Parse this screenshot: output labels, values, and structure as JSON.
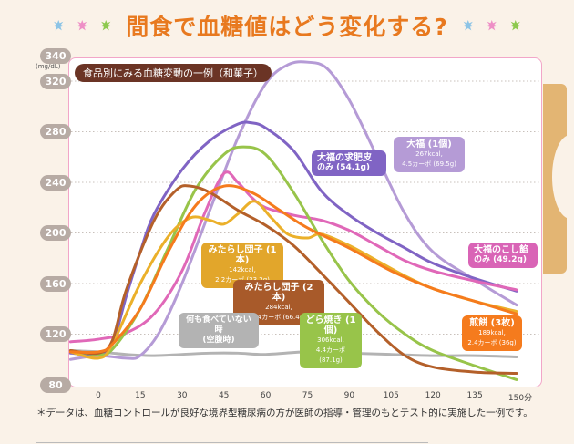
{
  "header": {
    "title": "間食で血糖値はどう変化する?",
    "stars_left": [
      "#8cc4e6",
      "#ee8fc6",
      "#8dc94e"
    ],
    "stars_right": [
      "#8cc4e6",
      "#ee8fc6",
      "#8dc94e"
    ]
  },
  "chart_data": {
    "type": "line",
    "title": "食品別にみる血糖変動の一例（和菓子）",
    "xlabel": "",
    "ylabel": "(mg/dL)",
    "x_unit_label": "分",
    "xlim": [
      -10,
      155
    ],
    "ylim": [
      80,
      340
    ],
    "xticks": [
      0,
      15,
      30,
      45,
      60,
      75,
      90,
      105,
      120,
      135,
      150
    ],
    "xtick_labels": [
      "0",
      "15",
      "30",
      "45",
      "60",
      "75",
      "90",
      "105",
      "120",
      "135",
      "150分"
    ],
    "yticks": [
      80,
      120,
      160,
      200,
      240,
      280,
      320,
      340
    ],
    "grid": true,
    "series": [
      {
        "name": "何も食べていない時 (空腹時)",
        "color": "#b3b3b3",
        "x": [
          -10,
          0,
          10,
          20,
          30,
          40,
          50,
          60,
          75,
          90,
          105,
          120,
          135,
          150
        ],
        "y": [
          107,
          106,
          104,
          103,
          104,
          105,
          105,
          104,
          106,
          105,
          104,
          103,
          103,
          102
        ],
        "callout": {
          "line1": "何も食べていない時",
          "line2": "(空腹時)"
        }
      },
      {
        "name": "大福 (1個)",
        "color": "#b59bd6",
        "x": [
          -10,
          0,
          10,
          15,
          22,
          30,
          40,
          50,
          60,
          68,
          75,
          82,
          90,
          100,
          110,
          120,
          135,
          150
        ],
        "y": [
          100,
          103,
          101,
          103,
          122,
          160,
          218,
          275,
          318,
          333,
          335,
          330,
          305,
          260,
          215,
          185,
          163,
          143
        ],
        "callout": {
          "line1": "大福 (1個)",
          "line2": "267kcal,",
          "line3": "4.5カーボ (69.5g)"
        }
      },
      {
        "name": "大福の求肥皮のみ",
        "color": "#8064c4",
        "x": [
          -10,
          0,
          5,
          10,
          15,
          20,
          30,
          40,
          50,
          55,
          60,
          70,
          80,
          90,
          100,
          110,
          120,
          135,
          150
        ],
        "y": [
          105,
          104,
          112,
          150,
          185,
          215,
          250,
          273,
          286,
          287,
          283,
          265,
          233,
          214,
          200,
          188,
          176,
          164,
          154
        ],
        "callout": {
          "line1": "大福の求肥皮",
          "line2": "のみ (54.1g)"
        }
      },
      {
        "name": "大福のこし餡のみ",
        "color": "#e068b8",
        "x": [
          -10,
          0,
          10,
          20,
          30,
          38,
          45,
          50,
          55,
          60,
          70,
          80,
          90,
          100,
          110,
          120,
          135,
          150
        ],
        "y": [
          114,
          116,
          121,
          136,
          170,
          215,
          247,
          240,
          228,
          220,
          214,
          210,
          202,
          190,
          178,
          170,
          162,
          155
        ],
        "callout": {
          "line1": "大福のこし餡",
          "line2": "のみ (49.2g)"
        }
      },
      {
        "name": "どら焼き (1個)",
        "color": "#98c44a",
        "x": [
          -10,
          0,
          5,
          15,
          25,
          35,
          45,
          52,
          60,
          70,
          80,
          90,
          100,
          110,
          120,
          135,
          150
        ],
        "y": [
          107,
          104,
          108,
          140,
          188,
          235,
          262,
          268,
          262,
          232,
          195,
          162,
          138,
          120,
          107,
          95,
          84
        ],
        "callout": {
          "line1": "どら焼き (1個)",
          "line2": "306kcal,",
          "line3": "4.4カーボ (87.1g)"
        }
      },
      {
        "name": "みたらし団子 (1本)",
        "color": "#ebb02a",
        "x": [
          -10,
          0,
          5,
          15,
          25,
          33,
          40,
          45,
          50,
          56,
          62,
          68,
          75,
          80,
          90,
          100,
          110,
          120,
          135,
          150
        ],
        "y": [
          106,
          101,
          112,
          160,
          197,
          212,
          210,
          207,
          215,
          225,
          212,
          199,
          196,
          199,
          190,
          178,
          166,
          156,
          146,
          138
        ],
        "callout": {
          "line1": "みたらし団子 (1本)",
          "line2": "142kcal,",
          "line3": "2.2カーボ (33.2g)"
        }
      },
      {
        "name": "みたらし団子 (2本)",
        "color": "#b4602a",
        "x": [
          -10,
          0,
          5,
          10,
          20,
          28,
          33,
          40,
          50,
          60,
          70,
          80,
          90,
          100,
          110,
          120,
          135,
          150
        ],
        "y": [
          107,
          105,
          115,
          155,
          210,
          234,
          237,
          232,
          218,
          206,
          190,
          168,
          145,
          122,
          103,
          94,
          90,
          89
        ],
        "callout": {
          "line1": "みたらし団子 (2本)",
          "line2": "284kcal,",
          "line3": "4.4カーボ (66.4g)"
        }
      },
      {
        "name": "煎餅 (3枚)",
        "color": "#f57b1d",
        "x": [
          -10,
          0,
          5,
          15,
          25,
          35,
          45,
          55,
          65,
          75,
          90,
          105,
          120,
          135,
          150
        ],
        "y": [
          106,
          106,
          112,
          140,
          185,
          222,
          237,
          232,
          218,
          204,
          188,
          170,
          156,
          146,
          136
        ],
        "callout": {
          "line1": "煎餅 (3枚)",
          "line2": "189kcal,",
          "line3": "2.4カーボ (36g)"
        }
      }
    ]
  },
  "footnote": "＊データは、血糖コントロールが良好な境界型糖尿病の方が医師の指導・管理のもとテスト的に実施した一例です。"
}
